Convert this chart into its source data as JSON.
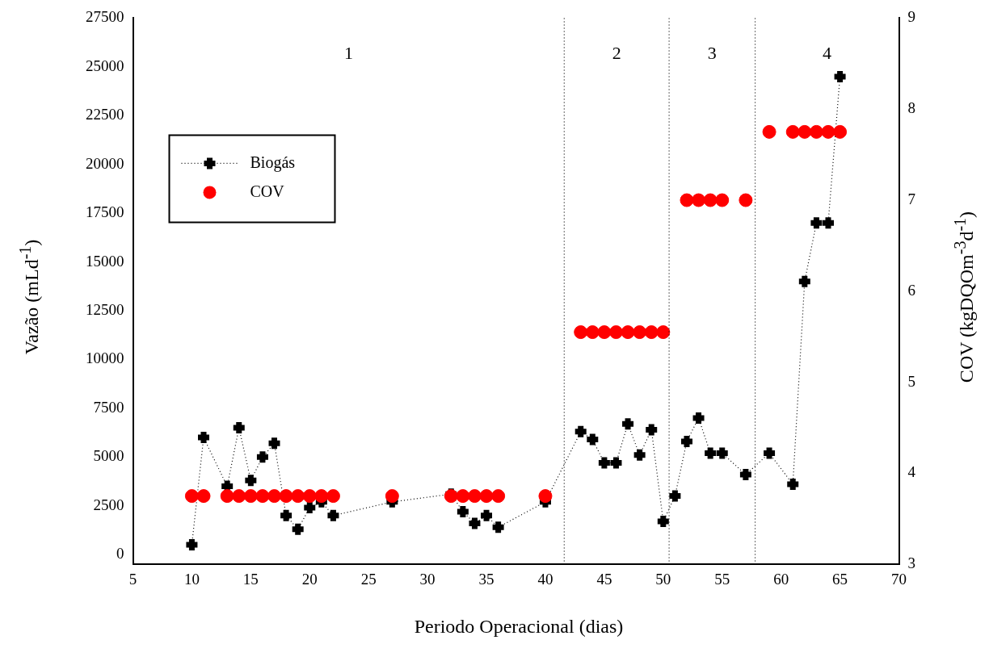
{
  "chart_data": {
    "type": "line",
    "xlabel": "Periodo Operacional (dias)",
    "ylabel": "Vazão (mLd$^{-1}$)",
    "y2label": "COV (kgDQOm$^{-3}$d$^{-1}$)",
    "xlim": [
      5,
      70
    ],
    "xticks": [
      5,
      10,
      15,
      20,
      25,
      30,
      35,
      40,
      45,
      50,
      55,
      60,
      65,
      70
    ],
    "ylim": [
      -500,
      27500
    ],
    "yticks": [
      0,
      2500,
      5000,
      7500,
      10000,
      12500,
      15000,
      17500,
      20000,
      22500,
      25000,
      27500
    ],
    "y2lim": [
      3,
      9
    ],
    "y2ticks": [
      3,
      4,
      5,
      6,
      7,
      8,
      9
    ],
    "legend": "top left",
    "grid": false,
    "series": [
      {
        "name": "Biogás",
        "color": "#000000",
        "marker": "cross",
        "line_style": "dotted",
        "x": [
          10,
          11,
          13,
          14,
          15,
          16,
          17,
          18,
          19,
          20,
          21,
          22,
          27,
          32,
          33,
          34,
          35,
          36,
          40,
          43,
          44,
          45,
          46,
          47,
          48,
          49,
          50,
          51,
          52,
          53,
          54,
          55,
          57,
          59,
          61,
          62,
          63,
          64,
          65
        ],
        "values": [
          500,
          6000,
          3500,
          6500,
          3800,
          5000,
          5700,
          2000,
          1300,
          2400,
          2700,
          2000,
          2700,
          3100,
          2200,
          1600,
          2000,
          1400,
          2700,
          6300,
          5900,
          4700,
          4700,
          6700,
          5100,
          6400,
          1700,
          3000,
          5800,
          7000,
          5200,
          5200,
          4100,
          5200,
          3600,
          14000,
          17000,
          17000,
          24500
        ]
      },
      {
        "name": "COV",
        "type": "scatter",
        "axis": "y2",
        "color": "#ff0000",
        "marker": "circle",
        "x": [
          10,
          11,
          13,
          14,
          15,
          16,
          17,
          18,
          19,
          20,
          21,
          22,
          27,
          32,
          33,
          34,
          35,
          36,
          40,
          43,
          44,
          45,
          46,
          47,
          48,
          49,
          50,
          52,
          53,
          54,
          55,
          57,
          59,
          61,
          62,
          63,
          64,
          65
        ],
        "values": [
          3.75,
          3.75,
          3.75,
          3.75,
          3.75,
          3.75,
          3.75,
          3.75,
          3.75,
          3.75,
          3.75,
          3.75,
          3.75,
          3.75,
          3.75,
          3.75,
          3.75,
          3.75,
          3.75,
          5.55,
          5.55,
          5.55,
          5.55,
          5.55,
          5.55,
          5.55,
          5.55,
          7,
          7,
          7,
          7,
          7,
          7.75,
          7.75,
          7.75,
          7.75,
          7.75,
          7.75
        ]
      }
    ],
    "ref_lines": [
      {
        "axis": "x",
        "value": 41.6,
        "line_style": "dotted",
        "color": "#000000"
      },
      {
        "axis": "x",
        "value": 50.5,
        "line_style": "dotted",
        "color": "#000000"
      },
      {
        "axis": "x",
        "value": 57.8,
        "line_style": "dotted",
        "color": "#000000"
      }
    ],
    "annotations": [
      "1",
      "2",
      "3",
      "4"
    ]
  }
}
